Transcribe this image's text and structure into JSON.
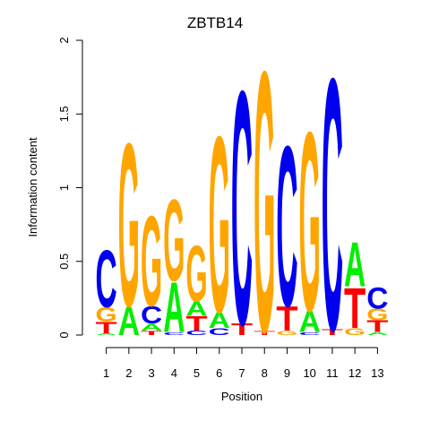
{
  "chart_data": {
    "type": "sequence-logo",
    "title": "ZBTB14",
    "xlabel": "Position",
    "ylabel": "Information content",
    "ylim": [
      0,
      2
    ],
    "yticks": [
      0,
      0.5,
      1,
      1.5,
      2
    ],
    "ytick_labels": [
      "0",
      "0.5",
      "1",
      "1.5",
      "2"
    ],
    "positions": [
      "1",
      "2",
      "3",
      "4",
      "5",
      "6",
      "7",
      "8",
      "9",
      "10",
      "11",
      "12",
      "13"
    ],
    "colors": {
      "A": "#00ee00",
      "C": "#0000ee",
      "G": "#ffa500",
      "T": "#ff0000"
    },
    "stacks": [
      [
        [
          "A",
          0.01
        ],
        [
          "T",
          0.08
        ],
        [
          "G",
          0.1
        ],
        [
          "C",
          0.4
        ]
      ],
      [
        [
          "A",
          0.2
        ],
        [
          "G",
          1.14
        ]
      ],
      [
        [
          "T",
          0.03
        ],
        [
          "A",
          0.05
        ],
        [
          "C",
          0.12
        ],
        [
          "G",
          0.63
        ]
      ],
      [
        [
          "C",
          0.02
        ],
        [
          "A",
          0.35
        ],
        [
          "G",
          0.57
        ]
      ],
      [
        [
          "C",
          0.03
        ],
        [
          "T",
          0.1
        ],
        [
          "A",
          0.1
        ],
        [
          "G",
          0.39
        ]
      ],
      [
        [
          "C",
          0.05
        ],
        [
          "A",
          0.11
        ],
        [
          "G",
          1.23
        ]
      ],
      [
        [
          "T",
          0.08
        ],
        [
          "C",
          1.63
        ]
      ],
      [
        [
          "T",
          0.03
        ],
        [
          "G",
          1.82
        ]
      ],
      [
        [
          "G",
          0.03
        ],
        [
          "T",
          0.17
        ],
        [
          "C",
          1.12
        ]
      ],
      [
        [
          "C",
          0.02
        ],
        [
          "A",
          0.15
        ],
        [
          "G",
          1.25
        ]
      ],
      [
        [
          "T",
          0.04
        ],
        [
          "C",
          1.76
        ]
      ],
      [
        [
          "G",
          0.05
        ],
        [
          "T",
          0.28
        ],
        [
          "A",
          0.31
        ]
      ],
      [
        [
          "A",
          0.02
        ],
        [
          "T",
          0.08
        ],
        [
          "G",
          0.08
        ],
        [
          "C",
          0.15
        ]
      ]
    ]
  }
}
